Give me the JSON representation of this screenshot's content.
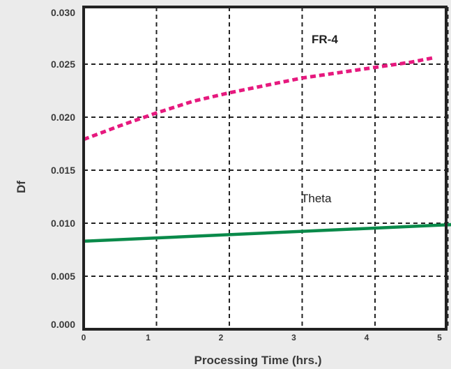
{
  "chart_data": {
    "type": "line",
    "xlabel": "Processing Time (hrs.)",
    "ylabel": "Df",
    "xlim": [
      0,
      5.8
    ],
    "ylim": [
      0.0,
      0.03
    ],
    "x_ticks": [
      "0",
      "1",
      "2",
      "3",
      "4",
      "5"
    ],
    "y_ticks": [
      "0.000",
      "0.005",
      "0.010",
      "0.015",
      "0.020",
      "0.025",
      "0.030"
    ],
    "grid": true,
    "series": [
      {
        "name": "FR-4",
        "style": "dotted",
        "color": "#e6197e",
        "x": [
          0,
          0.5,
          1.0,
          1.5,
          2.0,
          2.5,
          3.0,
          3.5,
          4.0,
          4.5,
          4.8
        ],
        "y": [
          0.0179,
          0.0192,
          0.0204,
          0.0215,
          0.0223,
          0.023,
          0.0237,
          0.0242,
          0.0247,
          0.0252,
          0.0256
        ]
      },
      {
        "name": "Theta",
        "style": "solid",
        "color": "#0a8a4a",
        "x": [
          0,
          5.8
        ],
        "y": [
          0.0083,
          0.0101
        ]
      }
    ]
  }
}
